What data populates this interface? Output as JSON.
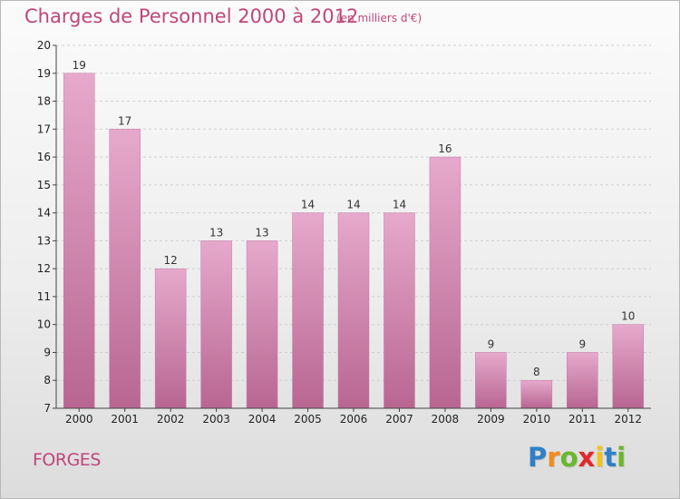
{
  "chart_data": {
    "type": "bar",
    "title": "Charges de Personnel 2000 à 2012",
    "subtitle": "(en milliers d'€)",
    "categories": [
      "2000",
      "2001",
      "2002",
      "2003",
      "2004",
      "2005",
      "2006",
      "2007",
      "2008",
      "2009",
      "2010",
      "2011",
      "2012"
    ],
    "values": [
      19,
      17,
      12,
      13,
      13,
      14,
      14,
      14,
      16,
      9,
      8,
      9,
      10
    ],
    "data_labels": [
      "19",
      "17",
      "12",
      "13",
      "13",
      "14",
      "14",
      "14",
      "16",
      "9",
      "8",
      "9",
      "10"
    ],
    "ylim": [
      7,
      20
    ],
    "y_ticks": [
      7,
      8,
      9,
      10,
      11,
      12,
      13,
      14,
      15,
      16,
      17,
      18,
      19,
      20
    ],
    "grid": "horizontal dashed",
    "bar_color": "#d77fab",
    "bar_gradient": [
      "#e6a9cc",
      "#b86691"
    ]
  },
  "footer": {
    "commune": "FORGES",
    "logo_letters": [
      "P",
      "r",
      "o",
      "x",
      "i",
      "t",
      "i"
    ],
    "logo_colors": [
      "#2f80c8",
      "#f28a1e",
      "#69b82a",
      "#e2272d",
      "#f2c313",
      "#2f80c8",
      "#69b82a"
    ]
  },
  "colors": {
    "title": "#c0467a",
    "axis": "#444444",
    "grid": "#cfcfcf"
  }
}
